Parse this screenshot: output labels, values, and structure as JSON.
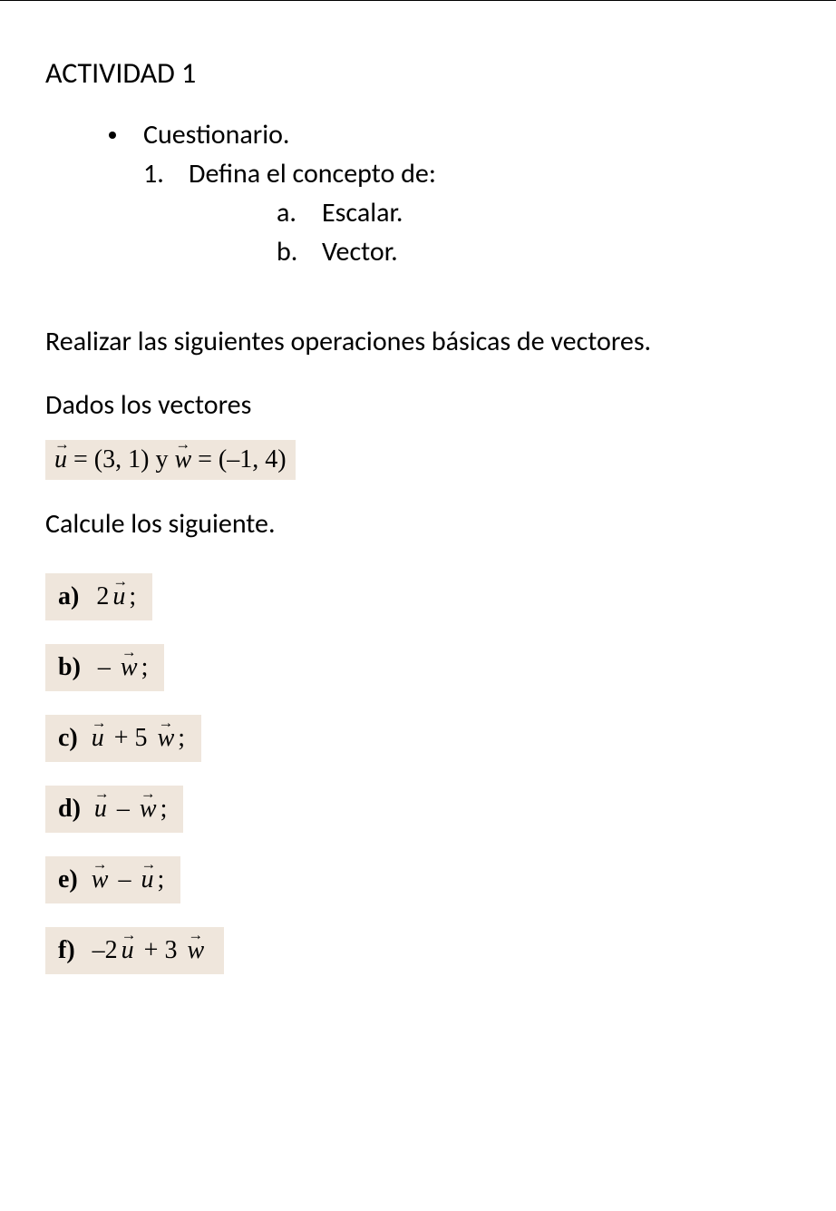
{
  "title": "ACTIVIDAD 1",
  "bullet_item": "Cuestionario.",
  "question": {
    "num": "1.",
    "text": "Defina el concepto de:",
    "subs": [
      {
        "label": "a.",
        "text": "Escalar."
      },
      {
        "label": "b.",
        "text": "Vector."
      }
    ]
  },
  "instruction1": "Realizar las siguientes operaciones básicas de vectores.",
  "instruction2": "Dados los vectores",
  "vectors_def": {
    "u_var": "u",
    "u_val": " = (3, 1) ",
    "y": "y ",
    "w_var": "w",
    "w_val": " = (–1, 4)"
  },
  "calc_title": "Calcule los siguiente.",
  "exercises": {
    "a": {
      "label": "a)",
      "coef": "2",
      "var": "u",
      "tail": ";"
    },
    "b": {
      "label": "b)",
      "pre": "– ",
      "var": "w",
      "tail": ";"
    },
    "c": {
      "label": "c)",
      "v1": "u",
      "mid": " + 5 ",
      "v2": "w",
      "tail": ";"
    },
    "d": {
      "label": "d)",
      "v1": "u",
      "mid": " – ",
      "v2": "w",
      "tail": ";"
    },
    "e": {
      "label": "e)",
      "v1": "w",
      "mid": " – ",
      "v2": "u",
      "tail": ";"
    },
    "f": {
      "label": "f)",
      "pre": "–2",
      "v1": "u",
      "mid": " + 3 ",
      "v2": "w",
      "tail": ""
    }
  },
  "colors": {
    "highlight_bg": "#efe6dc",
    "text": "#000000",
    "page_bg": "#ffffff"
  }
}
